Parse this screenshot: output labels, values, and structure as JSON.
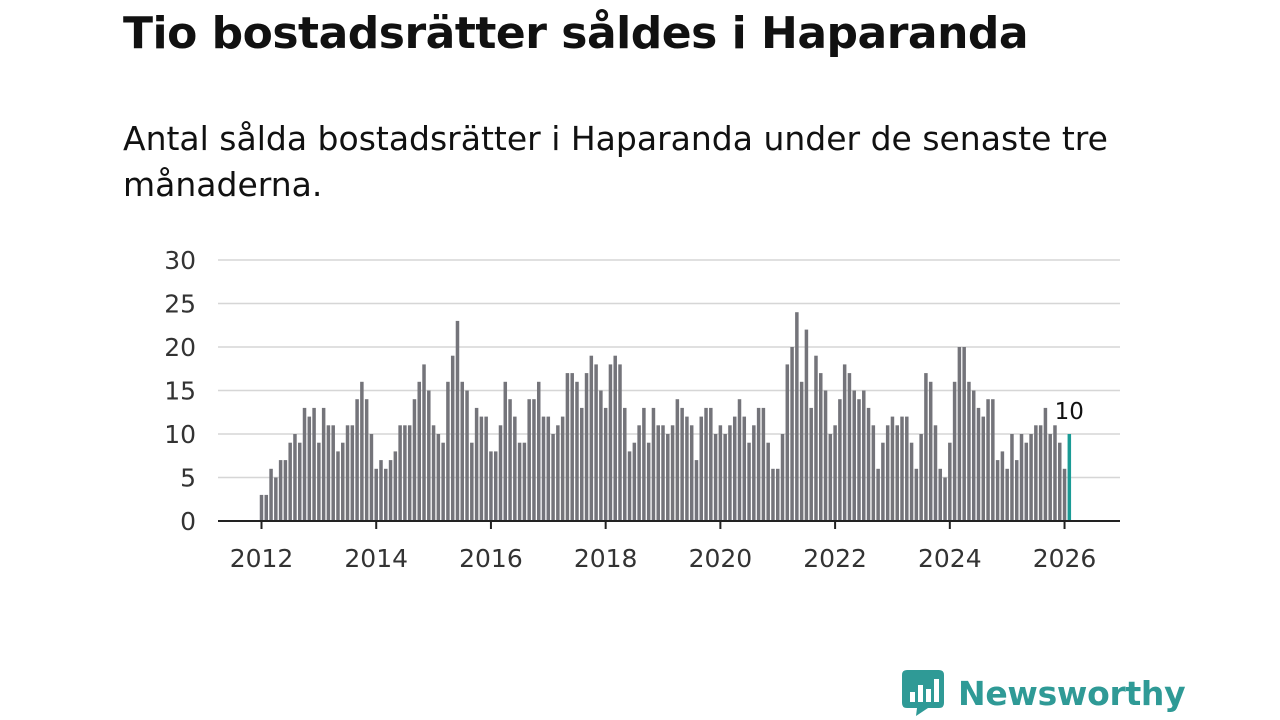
{
  "header": {
    "title": "Tio bostadsrätter såldes i Haparanda",
    "subtitle": "Antal sålda bostadsrätter i Haparanda under de senaste tre månaderna."
  },
  "brand": {
    "name": "Newsworthy",
    "color": "#2f9a96"
  },
  "colors": {
    "bar": "#74747a",
    "highlight": "#1a9b95",
    "grid": "#d6d6d6",
    "axis": "#222222"
  },
  "chart_data": {
    "type": "bar",
    "title": "Tio bostadsrätter såldes i Haparanda",
    "xlabel": "",
    "ylabel": "",
    "ylim": [
      0,
      30
    ],
    "yticks": [
      "0",
      "5",
      "10",
      "15",
      "20",
      "25",
      "30"
    ],
    "xticks": [
      "2012",
      "2014",
      "2016",
      "2018",
      "2020",
      "2022",
      "2024",
      "2026"
    ],
    "start": "2012-01",
    "end": "2026-03",
    "grid": true,
    "highlight_label": "10",
    "values": [
      3,
      3,
      6,
      5,
      7,
      7,
      9,
      10,
      9,
      13,
      12,
      13,
      9,
      13,
      11,
      11,
      8,
      9,
      11,
      11,
      14,
      16,
      14,
      10,
      6,
      7,
      6,
      7,
      8,
      11,
      11,
      11,
      14,
      16,
      18,
      15,
      11,
      10,
      9,
      16,
      19,
      23,
      16,
      15,
      9,
      13,
      12,
      12,
      8,
      8,
      11,
      16,
      14,
      12,
      9,
      9,
      14,
      14,
      16,
      12,
      12,
      10,
      11,
      12,
      17,
      17,
      16,
      13,
      17,
      19,
      18,
      15,
      13,
      18,
      19,
      18,
      13,
      8,
      9,
      11,
      13,
      9,
      13,
      11,
      11,
      10,
      11,
      14,
      13,
      12,
      11,
      7,
      12,
      13,
      13,
      10,
      11,
      10,
      11,
      12,
      14,
      12,
      9,
      11,
      13,
      13,
      9,
      6,
      6,
      10,
      18,
      20,
      24,
      16,
      22,
      13,
      19,
      17,
      15,
      10,
      11,
      14,
      18,
      17,
      15,
      14,
      15,
      13,
      11,
      6,
      9,
      11,
      12,
      11,
      12,
      12,
      9,
      6,
      10,
      17,
      16,
      11,
      6,
      5,
      9,
      16,
      20,
      20,
      16,
      15,
      13,
      12,
      14,
      14,
      7,
      8,
      6,
      10,
      7,
      10,
      9,
      10,
      11,
      11,
      13,
      10,
      11,
      9,
      6,
      10
    ]
  }
}
